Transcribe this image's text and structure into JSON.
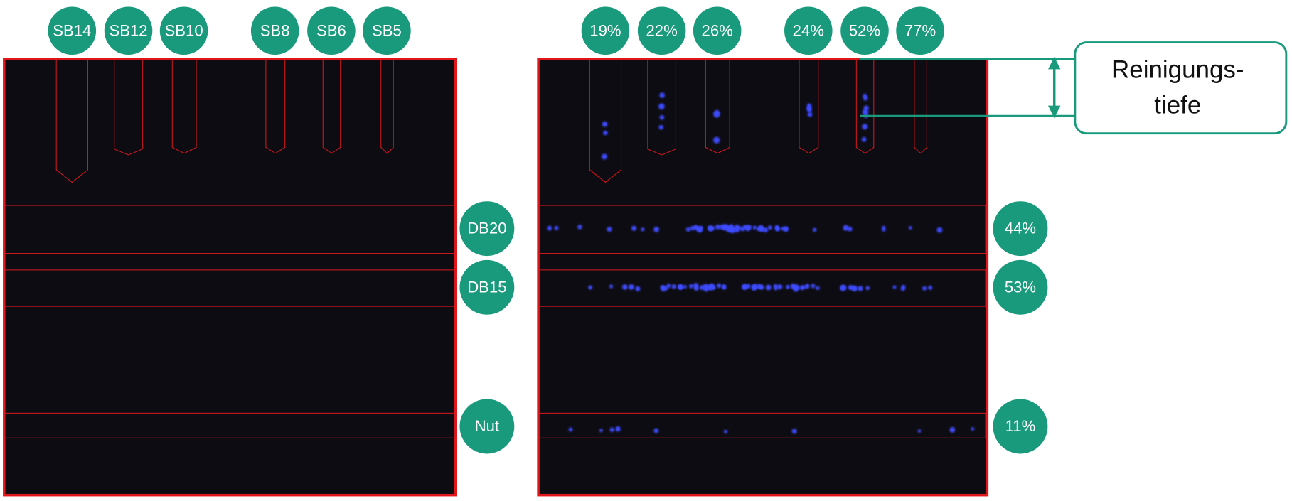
{
  "left_panel": {
    "slots": [
      "SB14",
      "SB12",
      "SB10",
      "SB8",
      "SB6",
      "SB5"
    ],
    "bands": [
      "DB20",
      "DB15",
      "Nut"
    ]
  },
  "right_panel": {
    "slots": [
      "19%",
      "22%",
      "26%",
      "24%",
      "52%",
      "77%"
    ],
    "bands": [
      "44%",
      "53%",
      "11%"
    ]
  },
  "callout": {
    "lines": [
      "Reinigungs-",
      "tiefe"
    ]
  }
}
